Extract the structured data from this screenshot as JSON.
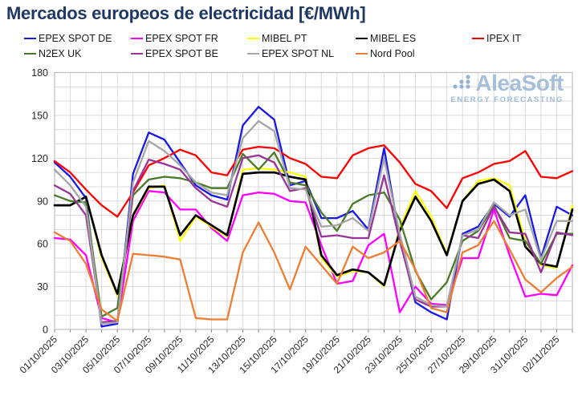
{
  "title": "Mercados europeos de electricidad [€/MWh]",
  "watermark": {
    "brand": "AleaSoft",
    "tagline": "ENERGY FORECASTING"
  },
  "colors": {
    "title": "#1f3864",
    "grid": "#d9d9d9",
    "frame": "#bfbfbf",
    "axis_text": "#262626",
    "watermark": "#a3bcd8"
  },
  "chart_data": {
    "type": "line",
    "title": "Mercados europeos de electricidad [€/MWh]",
    "ylabel": "",
    "xlabel": "",
    "ylim": [
      0,
      180
    ],
    "y_tick_step": 30,
    "y_grid_step": 10,
    "grid": true,
    "legend_position": "top",
    "n_points": 34,
    "x_start_date": "01/10/2025",
    "x_end_date": "03/11/2025",
    "x_tick_labels": [
      "01/10/2025",
      "03/10/2025",
      "05/10/2025",
      "07/10/2025",
      "09/10/2025",
      "11/10/2025",
      "13/10/2025",
      "15/10/2025",
      "17/10/2025",
      "19/10/2025",
      "21/10/2025",
      "23/10/2025",
      "25/10/2025",
      "27/10/2025",
      "29/10/2025",
      "31/10/2025",
      "02/11/2025"
    ],
    "x_label_every_n_days": 2,
    "y_tick_labels": [
      "0",
      "30",
      "60",
      "90",
      "120",
      "150",
      "180"
    ],
    "series": [
      {
        "name": "EPEX SPOT DE",
        "color": "#1717ee",
        "values": [
          117,
          107,
          92,
          2,
          4,
          109,
          138,
          133,
          117,
          101,
          94,
          91,
          143,
          156,
          147,
          101,
          104,
          78,
          78,
          83,
          70,
          127,
          64,
          19,
          12,
          7,
          67,
          72,
          88,
          79,
          94,
          50,
          86,
          80
        ]
      },
      {
        "name": "EPEX SPOT FR",
        "color": "#ff00ff",
        "values": [
          64,
          63,
          52,
          8,
          5,
          76,
          97,
          96,
          84,
          84,
          71,
          62,
          94,
          96,
          95,
          90,
          89,
          59,
          32,
          34,
          59,
          67,
          12,
          30,
          18,
          17,
          50,
          50,
          84,
          52,
          23,
          25,
          24,
          45
        ]
      },
      {
        "name": "MIBEL PT",
        "color": "#ffff00",
        "values": [
          87,
          87,
          93,
          50,
          24,
          79,
          99,
          101,
          62,
          79,
          72,
          65,
          112,
          113,
          112,
          110,
          107,
          50,
          37,
          41,
          40,
          30,
          71,
          97,
          79,
          53,
          90,
          104,
          106,
          101,
          62,
          45,
          43,
          87
        ]
      },
      {
        "name": "MIBEL ES",
        "color": "#000000",
        "values": [
          87,
          87,
          93,
          52,
          25,
          80,
          100,
          100,
          66,
          80,
          73,
          66,
          109,
          110,
          110,
          107,
          105,
          52,
          38,
          42,
          40,
          31,
          69,
          93,
          76,
          52,
          90,
          102,
          105,
          97,
          58,
          46,
          44,
          84
        ]
      },
      {
        "name": "IPEX IT",
        "color": "#ff0000",
        "values": [
          118,
          110,
          98,
          87,
          79,
          96,
          115,
          120,
          126,
          122,
          110,
          108,
          126,
          128,
          127,
          120,
          116,
          107,
          106,
          122,
          127,
          129,
          117,
          102,
          97,
          85,
          106,
          110,
          116,
          118,
          125,
          107,
          106,
          111
        ]
      },
      {
        "name": "N2EX UK",
        "color": "#497a29",
        "values": [
          94,
          90,
          89,
          9,
          15,
          94,
          105,
          107,
          106,
          103,
          99,
          99,
          123,
          112,
          124,
          103,
          101,
          82,
          69,
          88,
          94,
          96,
          77,
          41,
          21,
          33,
          62,
          69,
          87,
          64,
          62,
          46,
          67,
          67
        ]
      },
      {
        "name": "EPEX SPOT BE",
        "color": "#9a3399",
        "values": [
          101,
          95,
          80,
          5,
          6,
          97,
          119,
          116,
          112,
          99,
          90,
          86,
          120,
          122,
          117,
          97,
          99,
          65,
          66,
          64,
          64,
          108,
          62,
          21,
          16,
          16,
          66,
          64,
          86,
          68,
          67,
          40,
          68,
          66
        ]
      },
      {
        "name": "EPEX SPOT NL",
        "color": "#a6a6a6",
        "values": [
          112,
          101,
          86,
          4,
          5,
          103,
          132,
          125,
          115,
          103,
          96,
          94,
          134,
          146,
          139,
          99,
          98,
          72,
          73,
          78,
          69,
          120,
          67,
          23,
          17,
          16,
          66,
          70,
          89,
          80,
          84,
          49,
          76,
          76
        ]
      },
      {
        "name": "Nord Pool",
        "color": "#ed7d31",
        "values": [
          68,
          62,
          46,
          14,
          6,
          53,
          52,
          51,
          49,
          8,
          7,
          7,
          54,
          75,
          54,
          28,
          58,
          45,
          32,
          58,
          50,
          54,
          62,
          42,
          15,
          12,
          54,
          59,
          76,
          56,
          35,
          26,
          36,
          44
        ]
      }
    ]
  }
}
